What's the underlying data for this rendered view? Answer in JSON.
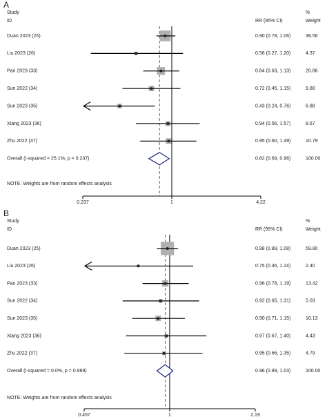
{
  "chart_data": [
    {
      "type": "forest",
      "panel": "A",
      "study_header": "Study",
      "id_header": "ID",
      "estimate_header": "RR (95% CI)",
      "weight_header_top": "%",
      "weight_header": "Weight",
      "categories": [
        "Duan 2023 (25)",
        "Liu 2023 (26)",
        "Pan 2023 (33)",
        "Sun 2022 (34)",
        "Sun 2023 (35)",
        "Xiang 2023 (36)",
        "Zhu 2022 (37)"
      ],
      "values": [
        0.9,
        0.56,
        0.84,
        0.72,
        0.43,
        0.94,
        0.95
      ],
      "ci_low": [
        0.78,
        0.27,
        0.63,
        0.45,
        0.24,
        0.56,
        0.6
      ],
      "ci_high": [
        1.06,
        1.2,
        1.13,
        1.15,
        0.76,
        1.57,
        1.49
      ],
      "value_labels": [
        "0.90 (0.78, 1.06)",
        "0.56 (0.27, 1.20)",
        "0.84 (0.63, 1.13)",
        "0.72 (0.45, 1.15)",
        "0.43 (0.24, 0.76)",
        "0.94 (0.56, 1.57)",
        "0.95 (0.60, 1.49)"
      ],
      "weights": [
        38.56,
        4.37,
        20.86,
        9.88,
        6.88,
        8.67,
        10.79
      ],
      "weight_labels": [
        "38.56",
        "4.37",
        "20.86",
        "9.88",
        "6.88",
        "8.67",
        "10.79"
      ],
      "overall": {
        "label": "Overall  (I-squared = 25.1%, p = 0.237)",
        "value": 0.82,
        "ci_low": 0.69,
        "ci_high": 0.96,
        "value_label": "0.82 (0.69, 0.96)",
        "weight_label": "100.00"
      },
      "note": "NOTE: Weights are from random effects analysis",
      "log_scale": true,
      "xlim": [
        0.237,
        4.22
      ],
      "xticks": [
        0.237,
        1,
        4.22
      ]
    },
    {
      "type": "forest",
      "panel": "B",
      "study_header": "Study",
      "id_header": "ID",
      "estimate_header": "RR (95% CI)",
      "weight_header_top": "%",
      "weight_header": "Weight",
      "categories": [
        "Duan 2023 (25)",
        "Liu 2023 (26)",
        "Pan 2023 (33)",
        "Sun 2022 (34)",
        "Sun 2023 (35)",
        "Xiang 2023 (36)",
        "Zhu 2022 (37)"
      ],
      "values": [
        0.98,
        0.75,
        0.96,
        0.92,
        0.9,
        0.97,
        0.95
      ],
      "ci_low": [
        0.89,
        0.46,
        0.78,
        0.65,
        0.71,
        0.67,
        0.66
      ],
      "ci_high": [
        1.08,
        1.24,
        1.19,
        1.31,
        1.15,
        1.4,
        1.35
      ],
      "value_labels": [
        "0.98 (0.89, 1.08)",
        "0.75 (0.46, 1.24)",
        "0.96 (0.78, 1.19)",
        "0.92 (0.65, 1.31)",
        "0.90 (0.71, 1.15)",
        "0.97 (0.67, 1.40)",
        "0.95 (0.66, 1.35)"
      ],
      "weights": [
        59.8,
        2.4,
        13.42,
        5.03,
        10.13,
        4.43,
        4.79
      ],
      "weight_labels": [
        "59.80",
        "2.40",
        "13.42",
        "5.03",
        "10.13",
        "4.43",
        "4.79"
      ],
      "overall": {
        "label": "Overall  (I-squared = 0.0%, p = 0.969)",
        "value": 0.96,
        "ci_low": 0.89,
        "ci_high": 1.03,
        "value_label": "0.96 (0.89, 1.03)",
        "weight_label": "100.00"
      },
      "note": "NOTE: Weights are from random effects analysis",
      "log_scale": true,
      "xlim": [
        0.457,
        2.19
      ],
      "xticks": [
        0.457,
        1,
        2.19
      ]
    }
  ]
}
